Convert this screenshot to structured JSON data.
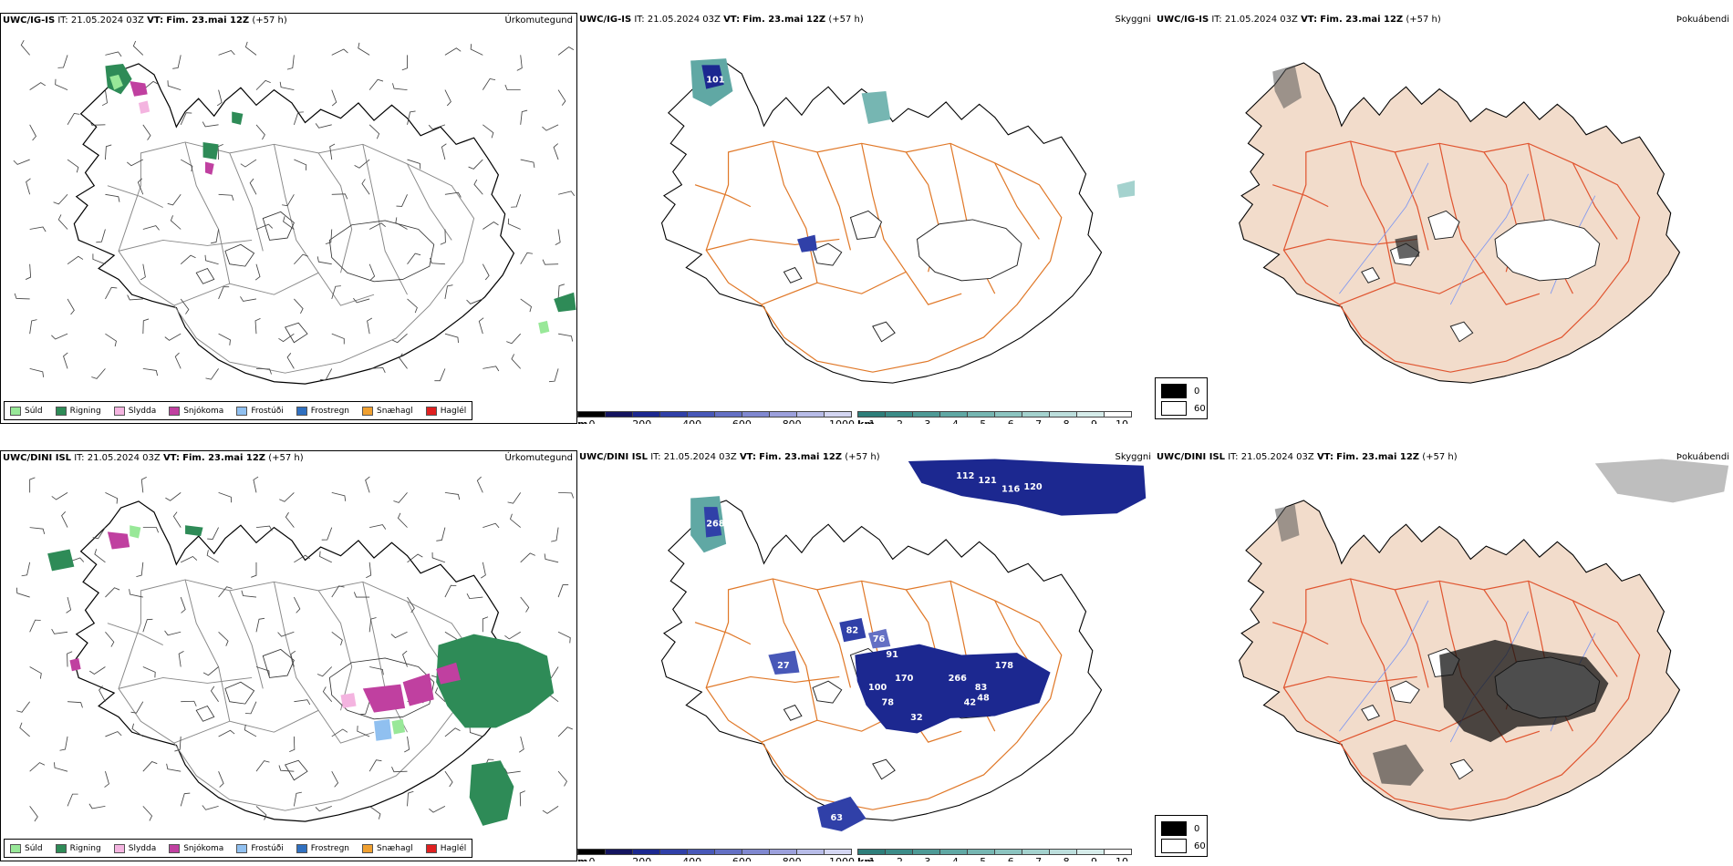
{
  "rows": [
    {
      "model": "UWC/IG-IS",
      "it_label": "IT:",
      "it_value": "21.05.2024 03Z",
      "vt_label": "VT:",
      "vt_value": "Fim. 23.mai 12Z",
      "lead": "(+57 h)",
      "precip_title": "Úrkomutegund",
      "cloud_title": "Skyggni",
      "fog_title": "Þokuábendi",
      "cloud_labels": [
        "101"
      ]
    },
    {
      "model": "UWC/DINI ISL",
      "it_label": "IT:",
      "it_value": "21.05.2024 03Z",
      "vt_label": "VT:",
      "vt_value": "Fim. 23.mai 12Z",
      "lead": "(+57 h)",
      "precip_title": "Úrkomutegund",
      "cloud_title": "Skyggni",
      "fog_title": "Þokuábendi",
      "cloud_labels": [
        "112",
        "121",
        "116",
        "120",
        "268",
        "82",
        "27",
        "76",
        "91",
        "170",
        "100",
        "78",
        "32",
        "266",
        "83",
        "42",
        "48",
        "178",
        "63"
      ]
    }
  ],
  "precip_legend": [
    {
      "label": "Súld",
      "color": "#98e898"
    },
    {
      "label": "Rigning",
      "color": "#2e8b57"
    },
    {
      "label": "Slydda",
      "color": "#f4b4e0"
    },
    {
      "label": "Snjókoma",
      "color": "#c040a0"
    },
    {
      "label": "Frostúði",
      "color": "#90c0f0"
    },
    {
      "label": "Frostregn",
      "color": "#3070c0"
    },
    {
      "label": "Snæhagl",
      "color": "#f0a030"
    },
    {
      "label": "Haglél",
      "color": "#e02020"
    }
  ],
  "cloudbase_scale": {
    "unit": "m",
    "ticks": [
      "0",
      "200",
      "400",
      "600",
      "800",
      "1000"
    ],
    "colors": [
      "#000000",
      "#141460",
      "#1c2890",
      "#3040a8",
      "#4858b8",
      "#6470c4",
      "#8088d0",
      "#9ca0dc",
      "#b8bce8",
      "#d4d6f2"
    ]
  },
  "visibility_scale": {
    "unit": "km",
    "ticks": [
      "1",
      "2",
      "3",
      "4",
      "5",
      "6",
      "7",
      "8",
      "9",
      "10"
    ],
    "colors": [
      "#2e7e7a",
      "#3c8c88",
      "#4e9a96",
      "#60a8a4",
      "#76b6b2",
      "#8cc4c0",
      "#a4d2ce",
      "#bcdedc",
      "#d6ecea",
      "#ffffff"
    ]
  },
  "fog_legend": [
    {
      "label": "0",
      "color": "#000000"
    },
    {
      "label": "60",
      "color": "#ffffff"
    }
  ],
  "colors": {
    "road": "#e07828",
    "river": "#8098f0",
    "coast": "#000000",
    "land_fill": "#f2dccb",
    "fog_road": "#e05530"
  }
}
